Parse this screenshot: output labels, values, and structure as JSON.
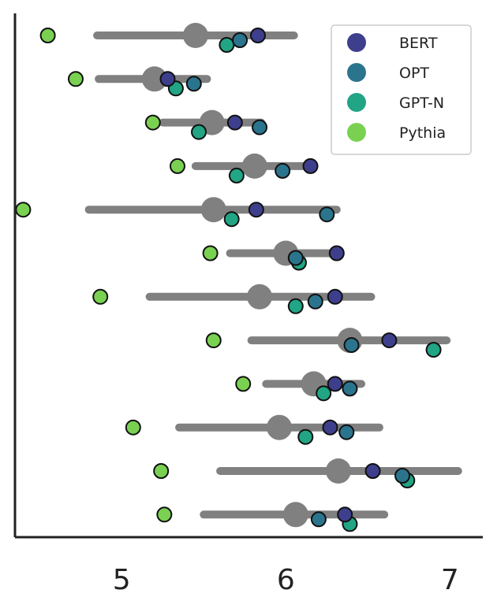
{
  "chart_data": {
    "type": "scatter",
    "title": "",
    "xlabel": "",
    "ylabel": "",
    "xlim": [
      4.35,
      7.2
    ],
    "xticks": [
      5,
      6,
      7
    ],
    "xtick_labels": [
      "5",
      "6",
      "7"
    ],
    "grid": false,
    "legend_position": "top-right",
    "rows": [
      {
        "mean": 5.45,
        "range": [
          4.85,
          6.05
        ],
        "points": {
          "BERT": [
            5.83
          ],
          "OPT": [
            5.72
          ],
          "GPT-N": [
            5.64
          ],
          "Pythia": [
            4.55
          ]
        }
      },
      {
        "mean": 5.2,
        "range": [
          4.86,
          5.52
        ],
        "points": {
          "BERT": [
            5.28
          ],
          "OPT": [
            5.44
          ],
          "GPT-N": [
            5.33
          ],
          "Pythia": [
            4.72
          ]
        }
      },
      {
        "mean": 5.55,
        "range": [
          5.25,
          5.85
        ],
        "points": {
          "BERT": [
            5.69
          ],
          "OPT": [
            5.84
          ],
          "GPT-N": [
            5.47
          ],
          "Pythia": [
            5.19
          ]
        }
      },
      {
        "mean": 5.81,
        "range": [
          5.45,
          6.16
        ],
        "points": {
          "BERT": [
            6.15
          ],
          "OPT": [
            5.98
          ],
          "GPT-N": [
            5.7
          ],
          "Pythia": [
            5.34
          ]
        }
      },
      {
        "mean": 5.56,
        "range": [
          4.8,
          6.31
        ],
        "points": {
          "BERT": [
            5.82
          ],
          "OPT": [
            6.25
          ],
          "GPT-N": [
            5.67
          ],
          "Pythia": [
            4.4
          ]
        }
      },
      {
        "mean": 6.0,
        "range": [
          5.66,
          6.32
        ],
        "points": {
          "BERT": [
            6.31
          ],
          "OPT": [
            6.06
          ],
          "GPT-N": [
            6.08
          ],
          "Pythia": [
            5.54
          ]
        }
      },
      {
        "mean": 5.84,
        "range": [
          5.17,
          6.52
        ],
        "points": {
          "BERT": [
            6.3
          ],
          "OPT": [
            6.18
          ],
          "GPT-N": [
            6.06
          ],
          "Pythia": [
            4.87
          ]
        }
      },
      {
        "mean": 6.39,
        "range": [
          5.79,
          6.98
        ],
        "points": {
          "BERT": [
            6.63
          ],
          "OPT": [
            6.4
          ],
          "GPT-N": [
            6.9
          ],
          "Pythia": [
            5.56
          ]
        }
      },
      {
        "mean": 6.17,
        "range": [
          5.88,
          6.46
        ],
        "points": {
          "BERT": [
            6.3
          ],
          "OPT": [
            6.39
          ],
          "GPT-N": [
            6.23
          ],
          "Pythia": [
            5.74
          ]
        }
      },
      {
        "mean": 5.96,
        "range": [
          5.35,
          6.57
        ],
        "points": {
          "BERT": [
            6.27
          ],
          "OPT": [
            6.37
          ],
          "GPT-N": [
            6.12
          ],
          "Pythia": [
            5.07
          ]
        }
      },
      {
        "mean": 6.32,
        "range": [
          5.6,
          7.05
        ],
        "points": {
          "BERT": [
            6.53
          ],
          "OPT": [
            6.71
          ],
          "GPT-N": [
            6.74
          ],
          "Pythia": [
            5.24
          ]
        }
      },
      {
        "mean": 6.06,
        "range": [
          5.5,
          6.6
        ],
        "points": {
          "BERT": [
            6.36
          ],
          "OPT": [
            6.2
          ],
          "GPT-N": [
            6.39
          ],
          "Pythia": [
            5.26
          ]
        }
      }
    ],
    "series": [
      {
        "name": "BERT",
        "color": "#3d3f8c"
      },
      {
        "name": "OPT",
        "color": "#2b748d"
      },
      {
        "name": "GPT-N",
        "color": "#21a585"
      },
      {
        "name": "Pythia",
        "color": "#7ad151"
      }
    ],
    "summary_color": "#808080",
    "axis_color": "#222222"
  }
}
